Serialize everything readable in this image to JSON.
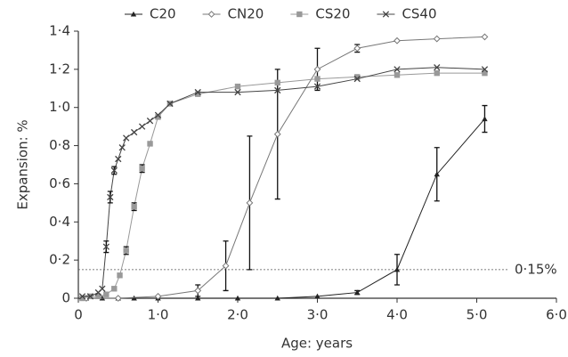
{
  "chart_data": {
    "type": "line",
    "xlabel": "Age: years",
    "ylabel": "Expansion: %",
    "xlim": [
      0,
      6
    ],
    "ylim": [
      0,
      1.4
    ],
    "xticks": [
      0,
      {
        "value": 1,
        "label": "1·0"
      },
      {
        "value": 2,
        "label": "2·0"
      },
      {
        "value": 3,
        "label": "3·0"
      },
      {
        "value": 4,
        "label": "4·0"
      },
      {
        "value": 5,
        "label": "5·0"
      },
      {
        "value": 6,
        "label": "6·0"
      }
    ],
    "yticks": [
      0,
      {
        "value": 0.2,
        "label": "0·2"
      },
      {
        "value": 0.4,
        "label": "0·4"
      },
      {
        "value": 0.6,
        "label": "0·6"
      },
      {
        "value": 0.8,
        "label": "0·8"
      },
      {
        "value": 1,
        "label": "1·0"
      },
      {
        "value": 1.2,
        "label": "1·2"
      },
      {
        "value": 1.4,
        "label": "1·4"
      }
    ],
    "reference_line": {
      "value": 0.15,
      "label": "0·15%"
    },
    "legend": "top",
    "series": [
      {
        "name": "C20",
        "color": "#222222",
        "marker": "triangle",
        "x": [
          0.1,
          0.3,
          0.5,
          0.7,
          1.0,
          1.5,
          2.0,
          2.5,
          3.0,
          3.5,
          4.0,
          4.5,
          5.1
        ],
        "values": [
          0,
          0,
          0,
          0,
          0,
          0,
          0,
          0,
          0.01,
          0.03,
          0.15,
          0.65,
          0.94
        ],
        "errors": [
          null,
          null,
          null,
          null,
          null,
          null,
          null,
          null,
          null,
          0.01,
          0.08,
          0.14,
          0.07
        ]
      },
      {
        "name": "CN20",
        "color": "#777777",
        "marker": "diamond",
        "x": [
          0.1,
          0.5,
          1.0,
          1.5,
          1.85,
          2.15,
          2.5,
          3.0,
          3.5,
          4.0,
          4.5,
          5.1
        ],
        "values": [
          0,
          0,
          0.01,
          0.04,
          0.17,
          0.5,
          0.86,
          1.2,
          1.31,
          1.35,
          1.36,
          1.37
        ],
        "errors": [
          null,
          null,
          null,
          0.03,
          0.13,
          0.35,
          0.34,
          0.11,
          0.02,
          null,
          null,
          null
        ]
      },
      {
        "name": "CS20",
        "color": "#999999",
        "marker": "square",
        "x": [
          0.05,
          0.15,
          0.25,
          0.35,
          0.45,
          0.52,
          0.6,
          0.7,
          0.8,
          0.9,
          1.0,
          1.15,
          1.5,
          2.0,
          2.5,
          3.0,
          3.5,
          4.0,
          4.5,
          5.1
        ],
        "values": [
          0,
          0.01,
          0.01,
          0.02,
          0.05,
          0.12,
          0.25,
          0.48,
          0.68,
          0.81,
          0.95,
          1.02,
          1.07,
          1.11,
          1.13,
          1.15,
          1.16,
          1.17,
          1.18,
          1.18
        ],
        "errors": [
          null,
          null,
          null,
          null,
          null,
          null,
          0.02,
          0.02,
          0.02,
          null,
          null,
          null,
          null,
          null,
          null,
          null,
          null,
          null,
          null,
          null
        ]
      },
      {
        "name": "CS40",
        "color": "#444444",
        "marker": "x",
        "x": [
          0.05,
          0.15,
          0.25,
          0.3,
          0.35,
          0.4,
          0.45,
          0.5,
          0.55,
          0.6,
          0.7,
          0.8,
          0.9,
          1.0,
          1.15,
          1.5,
          2.0,
          2.5,
          3.0,
          3.5,
          4.0,
          4.5,
          5.1
        ],
        "values": [
          0.01,
          0.01,
          0.03,
          0.05,
          0.27,
          0.53,
          0.67,
          0.73,
          0.79,
          0.84,
          0.87,
          0.9,
          0.93,
          0.96,
          1.02,
          1.08,
          1.08,
          1.09,
          1.11,
          1.15,
          1.2,
          1.21,
          1.2
        ],
        "errors": [
          null,
          null,
          null,
          null,
          0.03,
          0.03,
          0.02,
          null,
          null,
          null,
          null,
          null,
          null,
          null,
          null,
          null,
          null,
          null,
          null,
          null,
          null,
          null,
          null
        ]
      }
    ]
  }
}
